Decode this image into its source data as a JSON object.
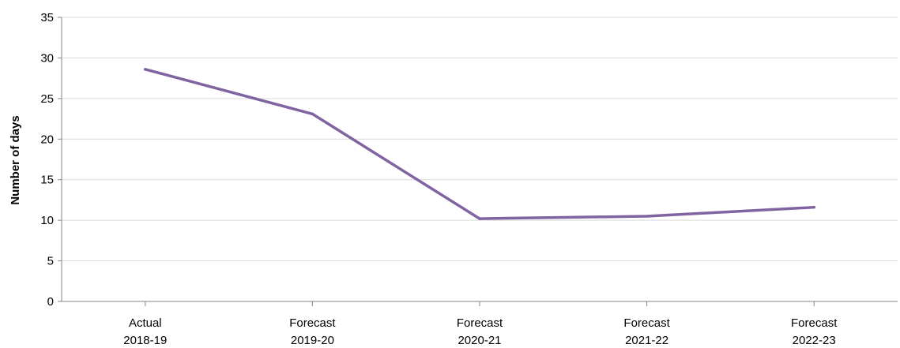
{
  "chart_data": {
    "type": "line",
    "title": "",
    "xlabel": "",
    "ylabel": "Number of days",
    "ylim": [
      0,
      35
    ],
    "yticks": [
      0,
      5,
      10,
      15,
      20,
      25,
      30,
      35
    ],
    "grid": true,
    "legend": "none",
    "categories": [
      {
        "line1": "Actual",
        "line2": "2018-19"
      },
      {
        "line1": "Forecast",
        "line2": "2019-20"
      },
      {
        "line1": "Forecast",
        "line2": "2020-21"
      },
      {
        "line1": "Forecast",
        "line2": "2021-22"
      },
      {
        "line1": "Forecast",
        "line2": "2022-23"
      }
    ],
    "series": [
      {
        "values": [
          28.6,
          23.1,
          10.2,
          10.5,
          11.6
        ],
        "color": "#8064a2"
      }
    ]
  }
}
